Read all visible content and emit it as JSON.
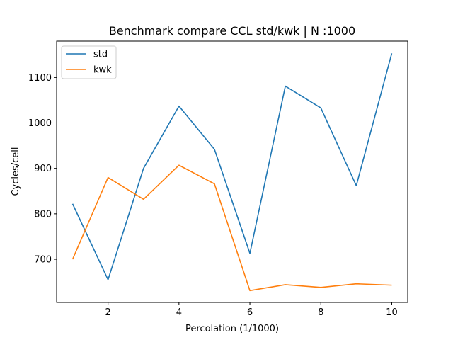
{
  "chart_data": {
    "type": "line",
    "title": "Benchmark compare CCL std/kwk | N :1000",
    "xlabel": "Percolation (1/1000)",
    "ylabel": "Cycles/cell",
    "x": [
      1,
      2,
      3,
      4,
      5,
      6,
      7,
      8,
      9,
      10
    ],
    "xlim": [
      0.55,
      10.45
    ],
    "ylim": [
      605,
      1180
    ],
    "xticks": [
      2,
      4,
      6,
      8,
      10
    ],
    "yticks": [
      700,
      800,
      900,
      1000,
      1100
    ],
    "grid": false,
    "legend_position": "upper left",
    "series": [
      {
        "name": "std",
        "color": "#1f77b4",
        "values": [
          822,
          655,
          900,
          1037,
          942,
          713,
          1081,
          1033,
          862,
          1153
        ]
      },
      {
        "name": "kwk",
        "color": "#ff7f0e",
        "values": [
          700,
          880,
          832,
          907,
          866,
          631,
          644,
          638,
          646,
          643
        ]
      }
    ]
  }
}
